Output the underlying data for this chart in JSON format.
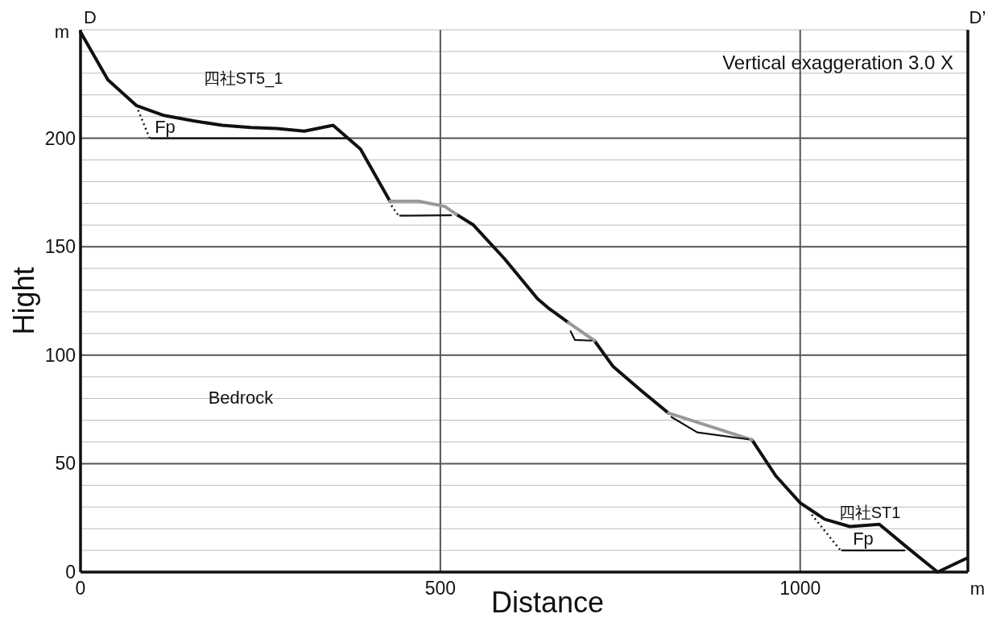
{
  "chart_data": {
    "type": "line",
    "xlabel": "Distance",
    "ylabel": "Hight",
    "xlim": [
      0,
      1233
    ],
    "ylim": [
      0,
      250
    ],
    "xticks": [
      0,
      500,
      1000
    ],
    "yticks": [
      0,
      {
        "value": 10,
        "label": null
      },
      {
        "value": 20,
        "label": null
      },
      {
        "value": 30,
        "label": null
      },
      {
        "value": 40,
        "label": null
      },
      50,
      {
        "value": 60,
        "label": null
      },
      {
        "value": 70,
        "label": null
      },
      {
        "value": 80,
        "label": null
      },
      {
        "value": 90,
        "label": null
      },
      100,
      {
        "value": 110,
        "label": null
      },
      {
        "value": 120,
        "label": null
      },
      {
        "value": 130,
        "label": null
      },
      {
        "value": 140,
        "label": null
      },
      150,
      {
        "value": 160,
        "label": null
      },
      {
        "value": 170,
        "label": null
      },
      {
        "value": 180,
        "label": null
      },
      {
        "value": 190,
        "label": null
      },
      200,
      {
        "value": 210,
        "label": null
      },
      {
        "value": 220,
        "label": null
      },
      {
        "value": 230,
        "label": null
      },
      {
        "value": 240,
        "label": null
      },
      {
        "value": 250,
        "label": null
      }
    ],
    "grid": true,
    "series": [
      {
        "color": "#111111",
        "x": [
          0,
          38,
          78,
          116,
          157,
          197,
          237,
          273,
          311,
          351,
          389,
          430
        ],
        "values": [
          249,
          227,
          215,
          210.5,
          208,
          206,
          205,
          204.5,
          203.3,
          206,
          195,
          171
        ]
      },
      {
        "color": "#111111",
        "x": [
          522,
          546,
          589,
          635,
          651,
          678
        ],
        "values": [
          165,
          160,
          144.5,
          126,
          121.5,
          115
        ]
      },
      {
        "color": "#111111",
        "x": [
          714,
          740,
          779,
          817
        ],
        "values": [
          106.7,
          94.8,
          83.7,
          73.3
        ]
      },
      {
        "color": "#111111",
        "x": [
          933,
          966,
          1000,
          1034,
          1069,
          1110,
          1150,
          1191,
          1231
        ],
        "values": [
          61,
          44.4,
          31.9,
          24.4,
          21,
          22,
          11,
          0,
          6.3
        ]
      },
      {
        "color": "#999999",
        "x": [
          430,
          470,
          506,
          522
        ],
        "values": [
          171,
          171,
          168.6,
          165
        ]
      },
      {
        "color": "#999999",
        "x": [
          678,
          714
        ],
        "values": [
          115,
          106.7
        ]
      },
      {
        "color": "#999999",
        "x": [
          817,
          933
        ],
        "values": [
          73.3,
          61
        ]
      },
      {
        "color": "#111111",
        "x": [
          98,
          371
        ],
        "values": [
          200,
          200
        ]
      },
      {
        "color": "#111111",
        "x": [
          444,
          515
        ],
        "values": [
          164.3,
          164.5
        ]
      },
      {
        "color": "#111111",
        "x": [
          681,
          687,
          710
        ],
        "values": [
          111,
          107,
          106.7
        ]
      },
      {
        "color": "#111111",
        "x": [
          821,
          857,
          928
        ],
        "values": [
          71.5,
          64.4,
          61.2
        ]
      },
      {
        "color": "#111111",
        "x": [
          1058,
          1145
        ],
        "values": [
          10,
          10
        ]
      },
      {
        "color": "#111111",
        "line_style": "dotted",
        "x": [
          80,
          96
        ],
        "values": [
          213,
          200
        ]
      },
      {
        "color": "#111111",
        "line_style": "dotted",
        "x": [
          432,
          442
        ],
        "values": [
          169,
          164.3
        ]
      },
      {
        "color": "#111111",
        "line_style": "dotted",
        "x": [
          1016,
          1056
        ],
        "values": [
          26.5,
          10
        ]
      }
    ],
    "annotations": [
      "Vertical exaggeration 3.0 X",
      "D",
      "D’",
      "m",
      "m",
      "Fp",
      "四社ST5_1",
      "Bedrock",
      "四社ST1",
      "Fp"
    ]
  }
}
